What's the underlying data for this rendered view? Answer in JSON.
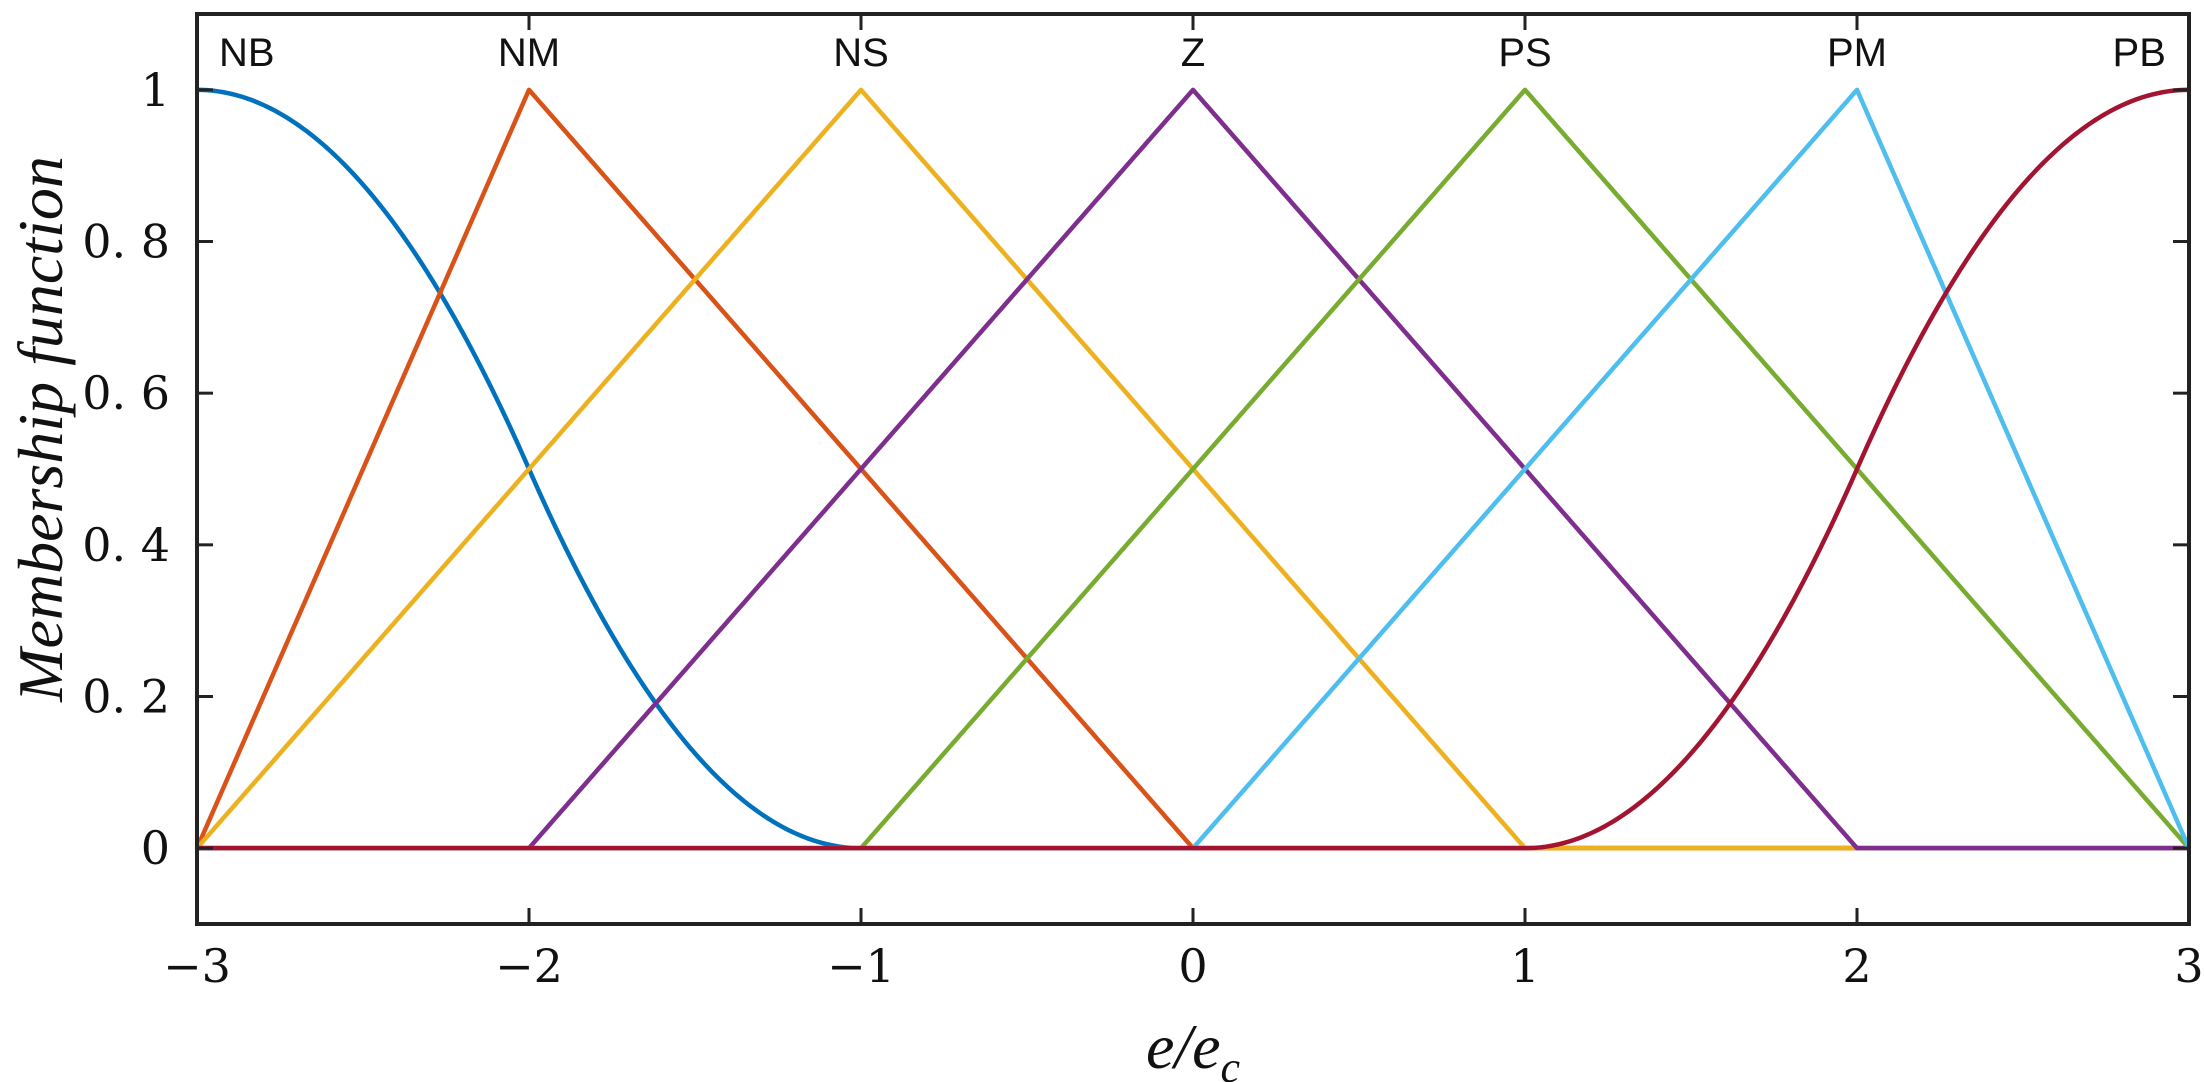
{
  "chart_data": {
    "type": "line",
    "xlabel": "e/e",
    "xlabel_subscript": "c",
    "ylabel": "Membership function",
    "xlim": [
      -3,
      3
    ],
    "ylim": [
      -0.1,
      1.1
    ],
    "x_ticks": [
      -3,
      -2,
      -1,
      0,
      1,
      2,
      3
    ],
    "x_tick_labels": [
      "−3",
      "−2",
      "−1",
      "0",
      "1",
      "2",
      "3"
    ],
    "y_ticks": [
      0,
      0.2,
      0.4,
      0.6,
      0.8,
      1
    ],
    "y_tick_labels": [
      "0",
      "0. 2",
      "0. 4",
      "0. 6",
      "0. 8",
      "1"
    ],
    "grid": false,
    "series": [
      {
        "name": "NB",
        "label_x": -2.85,
        "shape": "zmf",
        "params": [
          -3,
          -1
        ],
        "color": "#0072BD"
      },
      {
        "name": "NM",
        "label_x": -2.0,
        "shape": "trimf",
        "params": [
          -3,
          -2,
          0
        ],
        "color": "#D95319"
      },
      {
        "name": "NS",
        "label_x": -1.0,
        "shape": "trimf",
        "params": [
          -3,
          -1,
          1
        ],
        "color": "#EDB120"
      },
      {
        "name": "Z",
        "label_x": 0.0,
        "shape": "trimf",
        "params": [
          -2,
          0,
          2
        ],
        "color": "#7E2F8E"
      },
      {
        "name": "PS",
        "label_x": 1.0,
        "shape": "trimf",
        "params": [
          -1,
          1,
          3
        ],
        "color": "#77AC30"
      },
      {
        "name": "PM",
        "label_x": 2.0,
        "shape": "trimf",
        "params": [
          0,
          2,
          3
        ],
        "color": "#4DBEEE"
      },
      {
        "name": "PB",
        "label_x": 2.85,
        "shape": "smf",
        "params": [
          1,
          3
        ],
        "color": "#A2142F"
      }
    ]
  }
}
